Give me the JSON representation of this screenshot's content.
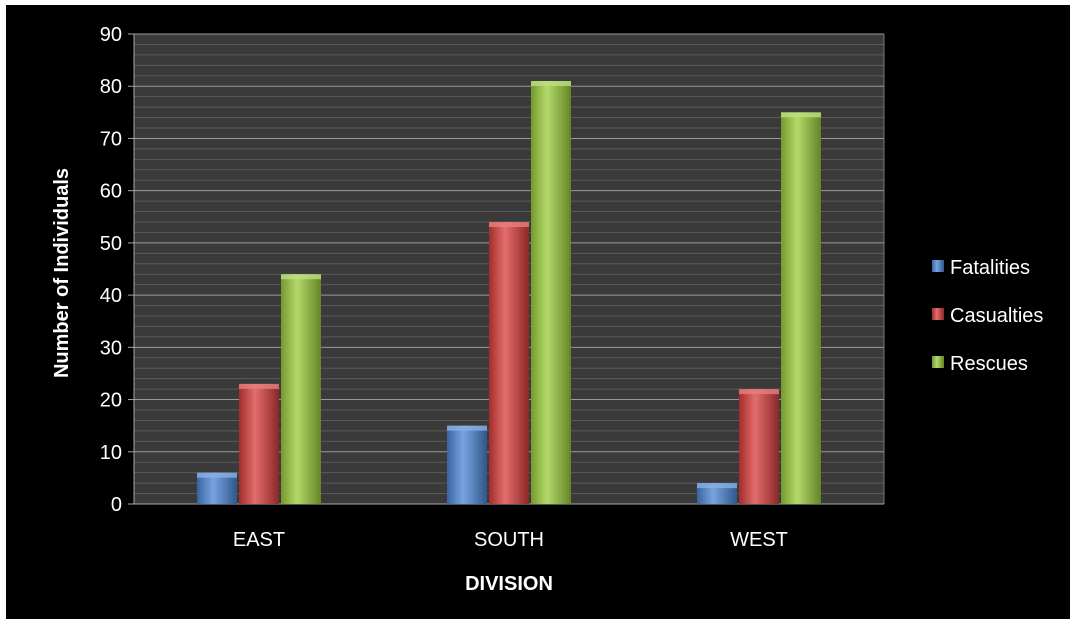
{
  "chart_data": {
    "type": "bar",
    "categories": [
      "EAST",
      "SOUTH",
      "WEST"
    ],
    "series": [
      {
        "name": "Fatalities",
        "values": [
          6,
          15,
          4
        ],
        "color": "#4a86d6"
      },
      {
        "name": "Casualties",
        "values": [
          23,
          54,
          22
        ],
        "color": "#d93c3c"
      },
      {
        "name": "Rescues",
        "values": [
          44,
          81,
          75
        ],
        "color": "#9bcc3a"
      }
    ],
    "title": "",
    "xlabel": "DIVISION",
    "ylabel": "Number of Individuals",
    "ylim": [
      0,
      90
    ],
    "yticks": [
      0,
      10,
      20,
      30,
      40,
      50,
      60,
      70,
      80,
      90
    ],
    "grid": true,
    "legend_position": "right",
    "plot_background": "#3a3a3a",
    "background": "#000000"
  }
}
